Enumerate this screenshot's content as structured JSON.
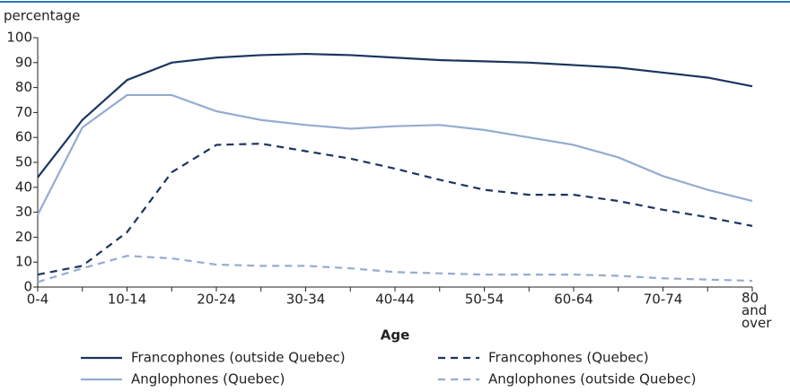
{
  "chart_data": {
    "type": "line",
    "y_axis_label": "percentage",
    "x_axis_label": "Age",
    "categories": [
      "0-4",
      null,
      "10-14",
      null,
      "20-24",
      null,
      "30-34",
      null,
      "40-44",
      null,
      "50-54",
      null,
      "60-64",
      null,
      "70-74",
      null,
      "80 and over"
    ],
    "ylim": [
      0,
      100
    ],
    "yticks": [
      0,
      10,
      20,
      30,
      40,
      50,
      60,
      70,
      80,
      90,
      100
    ],
    "series": [
      {
        "name": "Francophones (outside Quebec)",
        "color": "#1b3560",
        "dash": false,
        "values": [
          44,
          67,
          83,
          90,
          92,
          93,
          93.5,
          93,
          92,
          91,
          90.5,
          90,
          89,
          88,
          86,
          84,
          80.5
        ]
      },
      {
        "name": "Francophones (Quebec)",
        "color": "#1b3560",
        "dash": true,
        "values": [
          5,
          8.5,
          22,
          46,
          57,
          57.5,
          54.5,
          51.5,
          47.5,
          43,
          39,
          37,
          37,
          34.5,
          31,
          28,
          24.5
        ]
      },
      {
        "name": "Anglophones (Quebec)",
        "color": "#94acd0",
        "dash": false,
        "values": [
          29,
          64,
          77,
          77,
          70.5,
          67,
          65,
          63.5,
          64.5,
          65,
          63,
          60,
          57,
          52,
          44.5,
          39,
          34.5
        ]
      },
      {
        "name": "Anglophones (outside Quebec)",
        "color": "#94acd0",
        "dash": true,
        "values": [
          2,
          7.5,
          12.5,
          11.5,
          9,
          8.5,
          8.5,
          7.5,
          6,
          5.5,
          5,
          5,
          5,
          4.5,
          3.5,
          3,
          2.5
        ]
      }
    ]
  }
}
